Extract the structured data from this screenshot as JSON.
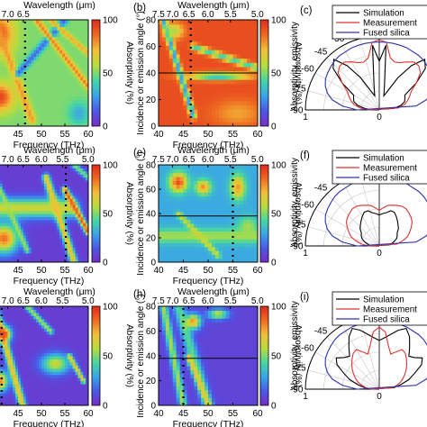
{
  "colors": {
    "colormap": [
      "#7a2cc4",
      "#4a58e6",
      "#3aa5e8",
      "#46d6a3",
      "#b8dc3c",
      "#f2c038",
      "#ee6a22",
      "#e02a1c"
    ],
    "simulation": "#000000",
    "measurement": "#dd3333",
    "fused_silica": "#3333aa"
  },
  "chart_data": [
    {
      "id": "a",
      "type": "heatmap",
      "xlabel": "Frequency (THz)",
      "top_label": "Wavelength (μm)",
      "x_ticks": [
        "45",
        "50",
        "55",
        "60"
      ],
      "top_ticks": [
        "7.0",
        "6.5"
      ],
      "colorbar": {
        "label": "Absorptivity (%)",
        "ticks": [
          "100",
          "50",
          "0"
        ],
        "range": [
          0,
          100
        ]
      },
      "xlim": [
        40,
        60
      ],
      "ylim": [
        0,
        80
      ],
      "marker_line_frequency": 46.5,
      "background": 0.5,
      "features": [
        {
          "kind": "blob",
          "cx": 41,
          "cy": 70,
          "rx": 3,
          "ry": 14,
          "v": 0.92
        },
        {
          "kind": "blob",
          "cx": 41,
          "cy": 22,
          "rx": 3,
          "ry": 10,
          "v": 0.95
        },
        {
          "kind": "band",
          "p1": [
            40,
            80
          ],
          "p2": [
            48,
            5
          ],
          "w": 1.6,
          "v": 0.78
        },
        {
          "kind": "band",
          "p1": [
            45,
            40
          ],
          "p2": [
            55,
            80
          ],
          "w": 1.4,
          "v": 0.18
        },
        {
          "kind": "band",
          "p1": [
            49,
            80
          ],
          "p2": [
            60,
            30
          ],
          "w": 1.2,
          "v": 0.82
        },
        {
          "kind": "band",
          "p1": [
            52,
            80
          ],
          "p2": [
            60,
            55
          ],
          "w": 1.0,
          "v": 0.75
        },
        {
          "kind": "blob",
          "cx": 58,
          "cy": 10,
          "rx": 2,
          "ry": 8,
          "v": 0.3
        }
      ]
    },
    {
      "id": "b",
      "label": "(b)",
      "type": "heatmap",
      "xlabel": "Frequency (THz)",
      "ylabel": "Incidence or emission angle (°)",
      "top_label": "Wavelength (μm)",
      "x_ticks": [
        "40",
        "45",
        "50",
        "55",
        "60"
      ],
      "y_ticks": [
        "0",
        "20",
        "40",
        "60",
        "80"
      ],
      "top_ticks": [
        "7.5",
        "7.0",
        "6.5",
        "6.0",
        "5.5",
        "5.0"
      ],
      "colorbar": {
        "label": "Absorptivity (%)",
        "ticks": [
          "100",
          "50",
          "0"
        ],
        "range": [
          0,
          100
        ]
      },
      "xlim": [
        40,
        60
      ],
      "ylim": [
        0,
        80
      ],
      "marker_line_frequency": 46.5,
      "horizontal_line_angle": 40,
      "background": 0.92,
      "features": [
        {
          "kind": "blob",
          "cx": 56,
          "cy": 10,
          "rx": 5,
          "ry": 10,
          "v": 0.76
        },
        {
          "kind": "band",
          "p1": [
            41,
            80
          ],
          "p2": [
            47,
            8
          ],
          "w": 1.2,
          "v": 0.28
        },
        {
          "kind": "band",
          "p1": [
            47,
            60
          ],
          "p2": [
            60,
            44
          ],
          "w": 1.2,
          "v": 0.42
        },
        {
          "kind": "blob",
          "cx": 43,
          "cy": 72,
          "rx": 2,
          "ry": 6,
          "v": 0.55
        },
        {
          "kind": "blob",
          "cx": 52,
          "cy": 38,
          "rx": 6,
          "ry": 3,
          "v": 0.3
        }
      ]
    },
    {
      "id": "c",
      "label": "(c)",
      "type": "polar",
      "ylabel": "Absorptivity, emissivity",
      "legend": [
        "Simulation",
        "Measurement",
        "Fused silica"
      ],
      "angle_ticks": [
        "-30",
        "-45",
        "-60",
        "-75",
        "-90",
        "0"
      ],
      "r_ticks": [
        "1",
        "0"
      ],
      "series": [
        {
          "name": "Simulation",
          "values": [
            0.66,
            0.88,
            0.34,
            0.2,
            0.28,
            0.5,
            0.74,
            0.92,
            0.84,
            0.62,
            0.4,
            0.38,
            0.36,
            0.3,
            0.2,
            0.1
          ]
        },
        {
          "name": "Measurement",
          "values": [
            0.95,
            0.92,
            0.72,
            0.68,
            0.7,
            0.75,
            0.8,
            0.8,
            0.75,
            0.62,
            0.5,
            0.45,
            0.4,
            0.35,
            0.26,
            0.15
          ]
        },
        {
          "name": "Fused silica",
          "values": [
            0.92,
            0.92,
            0.92,
            0.92,
            0.92,
            0.91,
            0.91,
            0.9,
            0.88,
            0.86,
            0.84,
            0.8,
            0.74,
            0.65,
            0.5,
            0.3
          ]
        }
      ]
    },
    {
      "id": "d",
      "type": "heatmap",
      "xlabel": "Frequency (THz)",
      "top_label": "Wavelength (μm)",
      "x_ticks": [
        "45",
        "50",
        "55",
        "60"
      ],
      "top_ticks": [
        "7.0",
        "6.5",
        "6.0",
        "5.5",
        "5.0"
      ],
      "colorbar": {
        "label": "Absorptivity (%)",
        "ticks": [
          "100",
          "50",
          "0"
        ],
        "range": [
          0,
          100
        ]
      },
      "xlim": [
        40,
        60
      ],
      "ylim": [
        0,
        80
      ],
      "marker_line_frequency": 55.2,
      "background": 0.06,
      "features": [
        {
          "kind": "band",
          "p1": [
            40,
            45
          ],
          "p2": [
            56,
            45
          ],
          "w": 4,
          "v": 0.62
        },
        {
          "kind": "blob",
          "cx": 42,
          "cy": 20,
          "rx": 3,
          "ry": 12,
          "v": 0.85
        },
        {
          "kind": "band",
          "p1": [
            40,
            70
          ],
          "p2": [
            47,
            10
          ],
          "w": 1.2,
          "v": 0.55
        },
        {
          "kind": "band",
          "p1": [
            51,
            70
          ],
          "p2": [
            57,
            0
          ],
          "w": 1.6,
          "v": 0.72
        },
        {
          "kind": "band",
          "p1": [
            55,
            60
          ],
          "p2": [
            60,
            25
          ],
          "w": 1.3,
          "v": 0.9
        },
        {
          "kind": "band",
          "p1": [
            57,
            80
          ],
          "p2": [
            60,
            70
          ],
          "w": 1.2,
          "v": 0.5
        }
      ]
    },
    {
      "id": "e",
      "label": "(e)",
      "type": "heatmap",
      "xlabel": "Frequency (THz)",
      "ylabel": "Incidence or emission angle (°)",
      "top_label": "Wavelength (μm)",
      "x_ticks": [
        "40",
        "45",
        "50",
        "55",
        "60"
      ],
      "y_ticks": [
        "0",
        "20",
        "40",
        "60",
        "80"
      ],
      "top_ticks": [
        "7.5",
        "7.0",
        "6.5",
        "6.0",
        "5.5",
        "5.0"
      ],
      "colorbar": {
        "label": "Absorptivity (%)",
        "ticks": [
          "100",
          "50",
          "0"
        ],
        "range": [
          0,
          100
        ]
      },
      "xlim": [
        40,
        60
      ],
      "ylim": [
        0,
        80
      ],
      "marker_line_frequency": 55,
      "horizontal_line_angle": 38,
      "background": 0.3,
      "features": [
        {
          "kind": "blob",
          "cx": 44,
          "cy": 66,
          "rx": 1.8,
          "ry": 8,
          "v": 0.92
        },
        {
          "kind": "blob",
          "cx": 49,
          "cy": 62,
          "rx": 1.5,
          "ry": 6,
          "v": 0.8
        },
        {
          "kind": "blob",
          "cx": 56,
          "cy": 62,
          "rx": 1.5,
          "ry": 10,
          "v": 0.78
        },
        {
          "kind": "band",
          "p1": [
            40,
            22
          ],
          "p2": [
            60,
            22
          ],
          "w": 3,
          "v": 0.55
        },
        {
          "kind": "band",
          "p1": [
            44,
            40
          ],
          "p2": [
            52,
            6
          ],
          "w": 1.2,
          "v": 0.62
        },
        {
          "kind": "blob",
          "cx": 58,
          "cy": 30,
          "rx": 2,
          "ry": 8,
          "v": 0.55
        }
      ]
    },
    {
      "id": "f",
      "label": "(f)",
      "type": "polar",
      "ylabel": "Absorptivity, emissivity",
      "legend": [
        "Simulation",
        "Measurement",
        "Fused silica"
      ],
      "angle_ticks": [
        "-30",
        "-45",
        "-60",
        "-75",
        "-90",
        "0"
      ],
      "r_ticks": [
        "1",
        "0"
      ],
      "series": [
        {
          "name": "Simulation",
          "values": [
            0.42,
            0.44,
            0.46,
            0.5,
            0.5,
            0.46,
            0.42,
            0.38,
            0.35,
            0.3,
            0.28,
            0.26,
            0.22,
            0.18,
            0.14,
            0.1
          ]
        },
        {
          "name": "Measurement",
          "values": [
            0.48,
            0.52,
            0.56,
            0.58,
            0.6,
            0.62,
            0.62,
            0.6,
            0.58,
            0.55,
            0.5,
            0.45,
            0.4,
            0.32,
            0.24,
            0.15
          ]
        },
        {
          "name": "Fused silica",
          "values": [
            0.92,
            0.92,
            0.92,
            0.92,
            0.92,
            0.91,
            0.91,
            0.9,
            0.88,
            0.86,
            0.84,
            0.8,
            0.74,
            0.65,
            0.5,
            0.3
          ]
        }
      ]
    },
    {
      "id": "g",
      "type": "heatmap",
      "xlabel": "Frequency (THz)",
      "top_label": "Wavelength (μm)",
      "x_ticks": [
        "45",
        "50",
        "55",
        "60"
      ],
      "top_ticks": [
        "7.0",
        "6.5",
        "6.0",
        "5.5",
        "5.0"
      ],
      "colorbar": {
        "label": "Absorptivity (%)",
        "ticks": [
          "100",
          "50",
          "0"
        ],
        "range": [
          0,
          100
        ]
      },
      "xlim": [
        40,
        60
      ],
      "ylim": [
        0,
        80
      ],
      "marker_line_frequency": 41.5,
      "background": 0.06,
      "features": [
        {
          "kind": "band",
          "p1": [
            40,
            80
          ],
          "p2": [
            46,
            0
          ],
          "w": 1.6,
          "v": 0.72
        },
        {
          "kind": "blob",
          "cx": 42,
          "cy": 58,
          "rx": 1.5,
          "ry": 6,
          "v": 0.95
        },
        {
          "kind": "blob",
          "cx": 41,
          "cy": 20,
          "rx": 1.8,
          "ry": 8,
          "v": 0.85
        },
        {
          "kind": "band",
          "p1": [
            47,
            80
          ],
          "p2": [
            52,
            60
          ],
          "w": 1.2,
          "v": 0.55
        },
        {
          "kind": "blob",
          "cx": 53,
          "cy": 34,
          "rx": 3,
          "ry": 8,
          "v": 0.62
        },
        {
          "kind": "band",
          "p1": [
            56,
            40
          ],
          "p2": [
            59,
            20
          ],
          "w": 1.0,
          "v": 0.72
        }
      ]
    },
    {
      "id": "h",
      "label": "(h)",
      "type": "heatmap",
      "xlabel": "Frequency (THz)",
      "ylabel": "Incidence or emission angle (°)",
      "top_label": "Wavelength (μm)",
      "x_ticks": [
        "40",
        "45",
        "50",
        "55",
        "60"
      ],
      "y_ticks": [
        "0",
        "20",
        "40",
        "60",
        "80"
      ],
      "top_ticks": [
        "7.5",
        "7.0",
        "6.5",
        "6.0",
        "5.5",
        "5.0"
      ],
      "colorbar": {
        "label": "Absorptivity (%)",
        "ticks": [
          "100",
          "50",
          "0"
        ],
        "range": [
          0,
          100
        ]
      },
      "xlim": [
        40,
        60
      ],
      "ylim": [
        0,
        80
      ],
      "marker_line_frequency": 45,
      "horizontal_line_angle": 38,
      "background": 0.08,
      "features": [
        {
          "kind": "band",
          "p1": [
            41,
            80
          ],
          "p2": [
            45,
            0
          ],
          "w": 1.6,
          "v": 0.55
        },
        {
          "kind": "band",
          "p1": [
            44,
            80
          ],
          "p2": [
            50,
            0
          ],
          "w": 2.2,
          "v": 0.45
        },
        {
          "kind": "blob",
          "cx": 47,
          "cy": 68,
          "rx": 1.5,
          "ry": 6,
          "v": 0.8
        },
        {
          "kind": "blob",
          "cx": 52,
          "cy": 74,
          "rx": 2,
          "ry": 4,
          "v": 0.6
        },
        {
          "kind": "band",
          "p1": [
            46,
            40
          ],
          "p2": [
            50,
            2
          ],
          "w": 1.2,
          "v": 0.7
        }
      ]
    },
    {
      "id": "i",
      "label": "(i)",
      "type": "polar",
      "ylabel": "Absorptivity, emissivity",
      "legend": [
        "Simulation",
        "Measurement",
        "Fused silica"
      ],
      "angle_ticks": [
        "-30",
        "-45",
        "-60",
        "-75",
        "-90",
        "0"
      ],
      "r_ticks": [
        "1",
        "0"
      ],
      "series": [
        {
          "name": "Simulation",
          "values": [
            0.66,
            0.7,
            0.76,
            0.84,
            0.9,
            0.82,
            0.7,
            0.6,
            0.64,
            0.72,
            0.66,
            0.52,
            0.42,
            0.3,
            0.2,
            0.1
          ]
        },
        {
          "name": "Measurement",
          "values": [
            0.84,
            0.78,
            0.6,
            0.5,
            0.55,
            0.62,
            0.6,
            0.55,
            0.5,
            0.45,
            0.4,
            0.35,
            0.3,
            0.24,
            0.18,
            0.1
          ]
        },
        {
          "name": "Fused silica",
          "values": [
            0.92,
            0.92,
            0.92,
            0.92,
            0.92,
            0.91,
            0.91,
            0.9,
            0.88,
            0.86,
            0.84,
            0.8,
            0.74,
            0.65,
            0.5,
            0.3
          ]
        }
      ]
    }
  ]
}
